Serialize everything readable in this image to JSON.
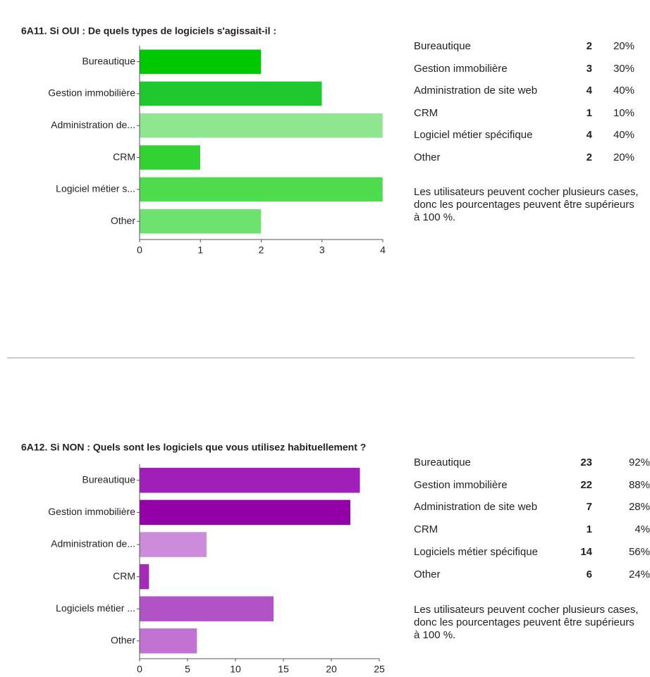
{
  "chart_data": [
    {
      "type": "bar",
      "orientation": "horizontal",
      "title": "6A11. Si OUI : De quels types de logiciels s'agissait-il :",
      "categories": [
        "Bureautique",
        "Gestion immobilière",
        "Administration de...",
        "CRM",
        "Logiciel métier s...",
        "Other"
      ],
      "values": [
        2,
        3,
        4,
        1,
        4,
        2
      ],
      "colors": [
        "#00c800",
        "#1fc82f",
        "#8ee68e",
        "#33d233",
        "#4edc4e",
        "#6ee26e"
      ],
      "xlim": [
        0,
        4
      ],
      "xticks": [
        0,
        1,
        2,
        3,
        4
      ],
      "table": {
        "rows": [
          [
            "Bureautique",
            2,
            "20%"
          ],
          [
            "Gestion immobilière",
            3,
            "30%"
          ],
          [
            "Administration de site web",
            4,
            "40%"
          ],
          [
            "CRM",
            1,
            "10%"
          ],
          [
            "Logiciel métier spécifique",
            4,
            "40%"
          ],
          [
            "Other",
            2,
            "20%"
          ]
        ]
      },
      "note": "Les utilisateurs peuvent cocher plusieurs cases, donc les pourcentages peuvent être supérieurs à 100 %."
    },
    {
      "type": "bar",
      "orientation": "horizontal",
      "title": "6A12. Si NON : Quels sont les logiciels que vous utilisez habituellement ?",
      "categories": [
        "Bureautique",
        "Gestion immobilière",
        "Administration de...",
        "CRM",
        "Logiciels métier ...",
        "Other"
      ],
      "values": [
        23,
        22,
        7,
        1,
        14,
        6
      ],
      "colors": [
        "#a01fb8",
        "#9300a8",
        "#cd8cda",
        "#a52ab9",
        "#b152c6",
        "#c272d2"
      ],
      "xlim": [
        0,
        25
      ],
      "xticks": [
        0,
        5,
        10,
        15,
        20,
        25
      ],
      "table": {
        "rows": [
          [
            "Bureautique",
            23,
            "92%"
          ],
          [
            "Gestion immobilière",
            22,
            "88%"
          ],
          [
            "Administration de site web",
            7,
            "28%"
          ],
          [
            "CRM",
            1,
            "4%"
          ],
          [
            "Logiciels métier spécifique",
            14,
            "56%"
          ],
          [
            "Other",
            6,
            "24%"
          ]
        ]
      },
      "note": "Les utilisateurs peuvent cocher plusieurs cases, donc les pourcentages peuvent être supérieurs à 100 %."
    }
  ]
}
